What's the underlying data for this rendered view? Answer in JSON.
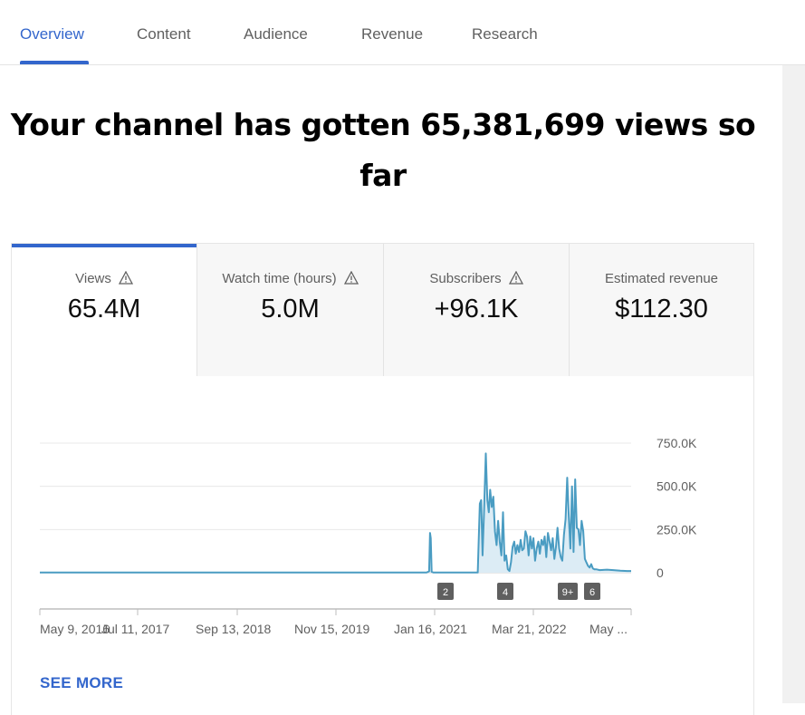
{
  "tabs": [
    {
      "label": "Overview",
      "active": true
    },
    {
      "label": "Content",
      "active": false
    },
    {
      "label": "Audience",
      "active": false
    },
    {
      "label": "Revenue",
      "active": false
    },
    {
      "label": "Research",
      "active": false
    }
  ],
  "headline": "Your channel has gotten 65,381,699 views so far",
  "metrics": [
    {
      "label": "Views",
      "value": "65.4M",
      "warning": true,
      "selected": true
    },
    {
      "label": "Watch time (hours)",
      "value": "5.0M",
      "warning": true,
      "selected": false
    },
    {
      "label": "Subscribers",
      "value": "+96.1K",
      "warning": true,
      "selected": false
    },
    {
      "label": "Estimated revenue",
      "value": "$112.30",
      "warning": false,
      "selected": false
    }
  ],
  "colors": {
    "accent": "#3366cc",
    "line": "#4a9cc2",
    "fill": "#dcecf5"
  },
  "chart_data": {
    "type": "line",
    "ylim": [
      0,
      750000
    ],
    "y_ticks": [
      "750.0K",
      "500.0K",
      "250.0K",
      "0"
    ],
    "x_ticks": [
      "May 9, 2016",
      "Jul 11, 2017",
      "Sep 13, 2018",
      "Nov 15, 2019",
      "Jan 16, 2021",
      "Mar 21, 2022",
      "May ..."
    ],
    "x_start": "2016-05-09",
    "x_end": "2023-06-01",
    "series": [
      {
        "x": [
          "2016-05-09",
          "2020-12-01",
          "2020-12-20",
          "2021-01-01",
          "2021-01-05",
          "2021-01-08",
          "2021-01-12",
          "2021-01-20",
          "2021-08-01",
          "2021-08-10",
          "2021-08-16",
          "2021-08-22",
          "2021-08-28",
          "2021-09-05",
          "2021-09-12",
          "2021-09-18",
          "2021-09-24",
          "2021-10-01",
          "2021-10-08",
          "2021-10-15",
          "2021-10-22",
          "2021-10-29",
          "2021-11-05",
          "2021-11-12",
          "2021-11-19",
          "2021-11-26",
          "2021-12-03",
          "2021-12-10",
          "2021-12-17",
          "2021-12-24",
          "2021-12-31",
          "2022-01-07",
          "2022-01-14",
          "2022-01-21",
          "2022-01-28",
          "2022-02-04",
          "2022-02-11",
          "2022-02-18",
          "2022-02-25",
          "2022-03-04",
          "2022-03-11",
          "2022-03-18",
          "2022-03-25",
          "2022-04-01",
          "2022-04-08",
          "2022-04-15",
          "2022-04-22",
          "2022-04-29",
          "2022-05-06",
          "2022-05-13",
          "2022-05-20",
          "2022-05-27",
          "2022-06-03",
          "2022-06-10",
          "2022-06-17",
          "2022-06-24",
          "2022-07-01",
          "2022-07-08",
          "2022-07-15",
          "2022-07-22",
          "2022-07-29",
          "2022-08-05",
          "2022-08-12",
          "2022-08-19",
          "2022-08-26",
          "2022-09-02",
          "2022-09-09",
          "2022-09-16",
          "2022-09-23",
          "2022-09-30",
          "2022-10-07",
          "2022-10-14",
          "2022-10-21",
          "2022-10-28",
          "2022-11-04",
          "2022-11-11",
          "2022-11-18",
          "2022-11-25",
          "2022-12-02",
          "2022-12-09",
          "2022-12-16",
          "2022-12-23",
          "2022-12-30",
          "2023-01-15",
          "2023-02-15",
          "2023-03-15",
          "2023-04-15",
          "2023-05-15",
          "2023-06-01"
        ],
        "y": [
          1000,
          1000,
          1000,
          8000,
          230000,
          200000,
          5000,
          1000,
          1000,
          400000,
          420000,
          100000,
          330000,
          690000,
          420000,
          350000,
          480000,
          380000,
          440000,
          240000,
          160000,
          300000,
          180000,
          100000,
          350000,
          70000,
          100000,
          20000,
          10000,
          60000,
          150000,
          180000,
          110000,
          160000,
          120000,
          190000,
          130000,
          140000,
          240000,
          210000,
          100000,
          210000,
          140000,
          200000,
          70000,
          140000,
          180000,
          110000,
          190000,
          160000,
          210000,
          90000,
          230000,
          180000,
          130000,
          200000,
          80000,
          150000,
          260000,
          140000,
          90000,
          70000,
          220000,
          310000,
          550000,
          330000,
          140000,
          500000,
          120000,
          540000,
          260000,
          250000,
          160000,
          300000,
          240000,
          80000,
          60000,
          40000,
          30000,
          50000,
          25000,
          20000,
          20000,
          15000,
          18000,
          15000,
          12000,
          10000,
          10000
        ]
      }
    ],
    "markers": [
      {
        "label": "2",
        "x": "2021-01-10"
      },
      {
        "label": "4",
        "x": "2021-09-05"
      },
      {
        "label": "9+",
        "x": "2022-09-01"
      },
      {
        "label": "6",
        "x": "2022-11-05"
      }
    ]
  },
  "see_more": "SEE MORE"
}
